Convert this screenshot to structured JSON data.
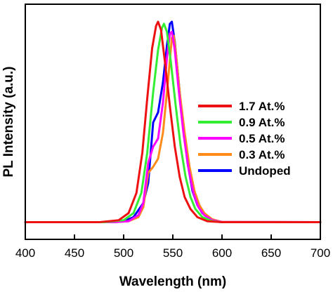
{
  "chart_data": {
    "type": "line",
    "xlabel": "Wavelength (nm)",
    "ylabel": "PL Intensity (a.u.)",
    "xlim": [
      400,
      700
    ],
    "ylim": [
      0,
      1.05
    ],
    "x_ticks": [
      "400",
      "450",
      "500",
      "550",
      "600",
      "650",
      "700"
    ],
    "y_ticks_shown": false,
    "legend_position": "right",
    "series": [
      {
        "name": "Undoped",
        "color": "#0000ff",
        "points": [
          [
            400,
            0.005
          ],
          [
            480,
            0.005
          ],
          [
            500,
            0.01
          ],
          [
            510,
            0.03
          ],
          [
            520,
            0.1
          ],
          [
            525,
            0.2
          ],
          [
            530,
            0.5
          ],
          [
            535,
            0.55
          ],
          [
            540,
            0.7
          ],
          [
            544,
            0.88
          ],
          [
            547,
            0.99
          ],
          [
            549,
            1.0
          ],
          [
            552,
            0.9
          ],
          [
            555,
            0.75
          ],
          [
            560,
            0.5
          ],
          [
            565,
            0.3
          ],
          [
            570,
            0.16
          ],
          [
            575,
            0.09
          ],
          [
            580,
            0.05
          ],
          [
            590,
            0.015
          ],
          [
            600,
            0.006
          ],
          [
            700,
            0.005
          ]
        ]
      },
      {
        "name": "0.3 At.%",
        "color": "#ff8c1a",
        "points": [
          [
            400,
            0.005
          ],
          [
            490,
            0.005
          ],
          [
            505,
            0.01
          ],
          [
            515,
            0.03
          ],
          [
            520,
            0.08
          ],
          [
            525,
            0.25
          ],
          [
            530,
            0.28
          ],
          [
            535,
            0.32
          ],
          [
            540,
            0.45
          ],
          [
            545,
            0.7
          ],
          [
            549,
            0.92
          ],
          [
            551,
            0.93
          ],
          [
            553,
            0.85
          ],
          [
            557,
            0.65
          ],
          [
            562,
            0.45
          ],
          [
            567,
            0.28
          ],
          [
            572,
            0.16
          ],
          [
            577,
            0.09
          ],
          [
            582,
            0.05
          ],
          [
            590,
            0.02
          ],
          [
            600,
            0.006
          ],
          [
            700,
            0.005
          ]
        ]
      },
      {
        "name": "0.5 At.%",
        "color": "#ff00ff",
        "points": [
          [
            400,
            0.005
          ],
          [
            490,
            0.005
          ],
          [
            505,
            0.01
          ],
          [
            515,
            0.04
          ],
          [
            520,
            0.1
          ],
          [
            525,
            0.3
          ],
          [
            530,
            0.38
          ],
          [
            535,
            0.42
          ],
          [
            540,
            0.6
          ],
          [
            544,
            0.82
          ],
          [
            547,
            0.94
          ],
          [
            549,
            0.95
          ],
          [
            552,
            0.86
          ],
          [
            556,
            0.66
          ],
          [
            561,
            0.44
          ],
          [
            566,
            0.27
          ],
          [
            571,
            0.15
          ],
          [
            576,
            0.08
          ],
          [
            582,
            0.04
          ],
          [
            590,
            0.015
          ],
          [
            600,
            0.006
          ],
          [
            700,
            0.005
          ]
        ]
      },
      {
        "name": "0.9 At.%",
        "color": "#33ee33",
        "points": [
          [
            400,
            0.005
          ],
          [
            480,
            0.005
          ],
          [
            500,
            0.015
          ],
          [
            510,
            0.05
          ],
          [
            518,
            0.15
          ],
          [
            524,
            0.35
          ],
          [
            530,
            0.65
          ],
          [
            535,
            0.86
          ],
          [
            539,
            0.97
          ],
          [
            541,
            0.99
          ],
          [
            544,
            0.95
          ],
          [
            548,
            0.8
          ],
          [
            553,
            0.58
          ],
          [
            558,
            0.38
          ],
          [
            563,
            0.23
          ],
          [
            568,
            0.13
          ],
          [
            573,
            0.07
          ],
          [
            580,
            0.03
          ],
          [
            590,
            0.01
          ],
          [
            600,
            0.005
          ],
          [
            700,
            0.005
          ]
        ]
      },
      {
        "name": "1.7 At.%",
        "color": "#ee1111",
        "points": [
          [
            400,
            0.005
          ],
          [
            475,
            0.005
          ],
          [
            495,
            0.015
          ],
          [
            505,
            0.05
          ],
          [
            513,
            0.15
          ],
          [
            519,
            0.35
          ],
          [
            524,
            0.62
          ],
          [
            529,
            0.87
          ],
          [
            533,
            0.98
          ],
          [
            535,
            1.0
          ],
          [
            538,
            0.96
          ],
          [
            542,
            0.8
          ],
          [
            547,
            0.58
          ],
          [
            552,
            0.38
          ],
          [
            557,
            0.23
          ],
          [
            562,
            0.13
          ],
          [
            568,
            0.07
          ],
          [
            575,
            0.03
          ],
          [
            585,
            0.01
          ],
          [
            600,
            0.005
          ],
          [
            700,
            0.005
          ]
        ]
      }
    ],
    "legend": [
      {
        "name": "1.7 At.%",
        "color": "#ee1111"
      },
      {
        "name": "0.9 At.%",
        "color": "#33ee33"
      },
      {
        "name": "0.5 At.%",
        "color": "#ff00ff"
      },
      {
        "name": "0.3 At.%",
        "color": "#ff8c1a"
      },
      {
        "name": "Undoped",
        "color": "#0000ff"
      }
    ]
  }
}
